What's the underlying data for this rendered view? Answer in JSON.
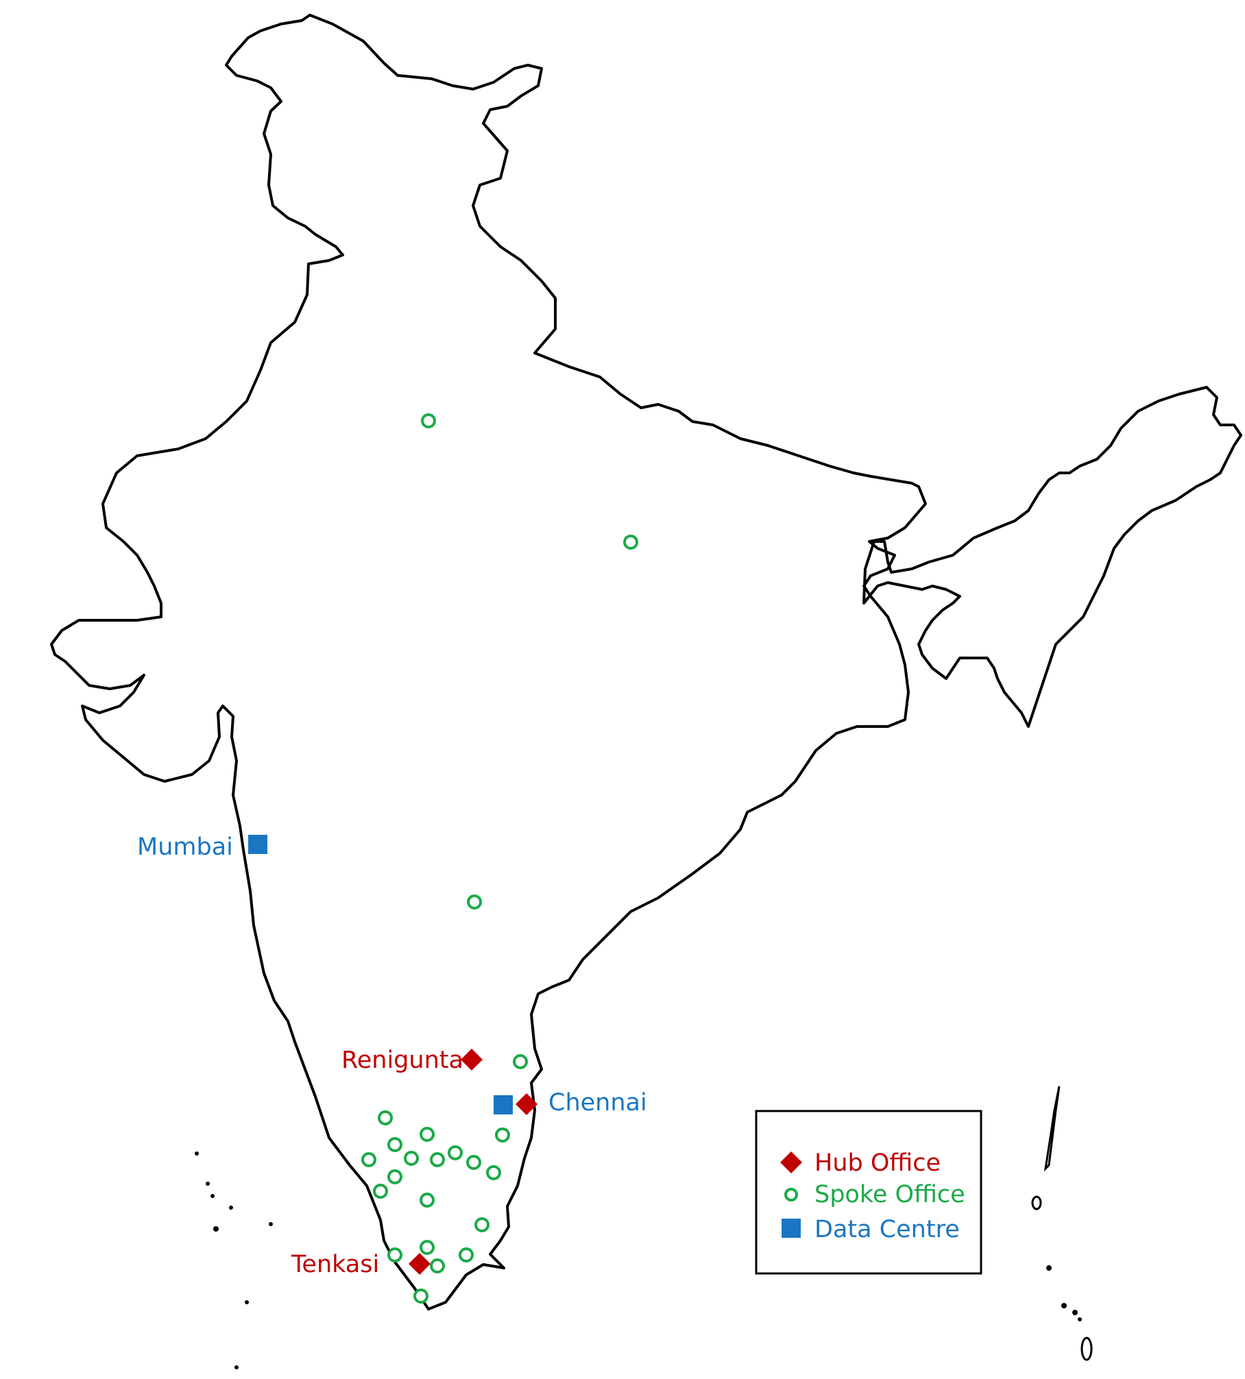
{
  "map": {
    "colors": {
      "outline": "#000000",
      "hub": "#c00000",
      "spoke": "#1aaa48",
      "data_centre": "#1a76c2"
    },
    "labels": {
      "mumbai": "Mumbai",
      "renigunta": "Renigunta",
      "chennai": "Chennai",
      "tenkasi": "Tenkasi"
    },
    "legend": {
      "hub_office": "Hub Office",
      "spoke_office": "Spoke Office",
      "data_centre": "Data Centre"
    }
  }
}
